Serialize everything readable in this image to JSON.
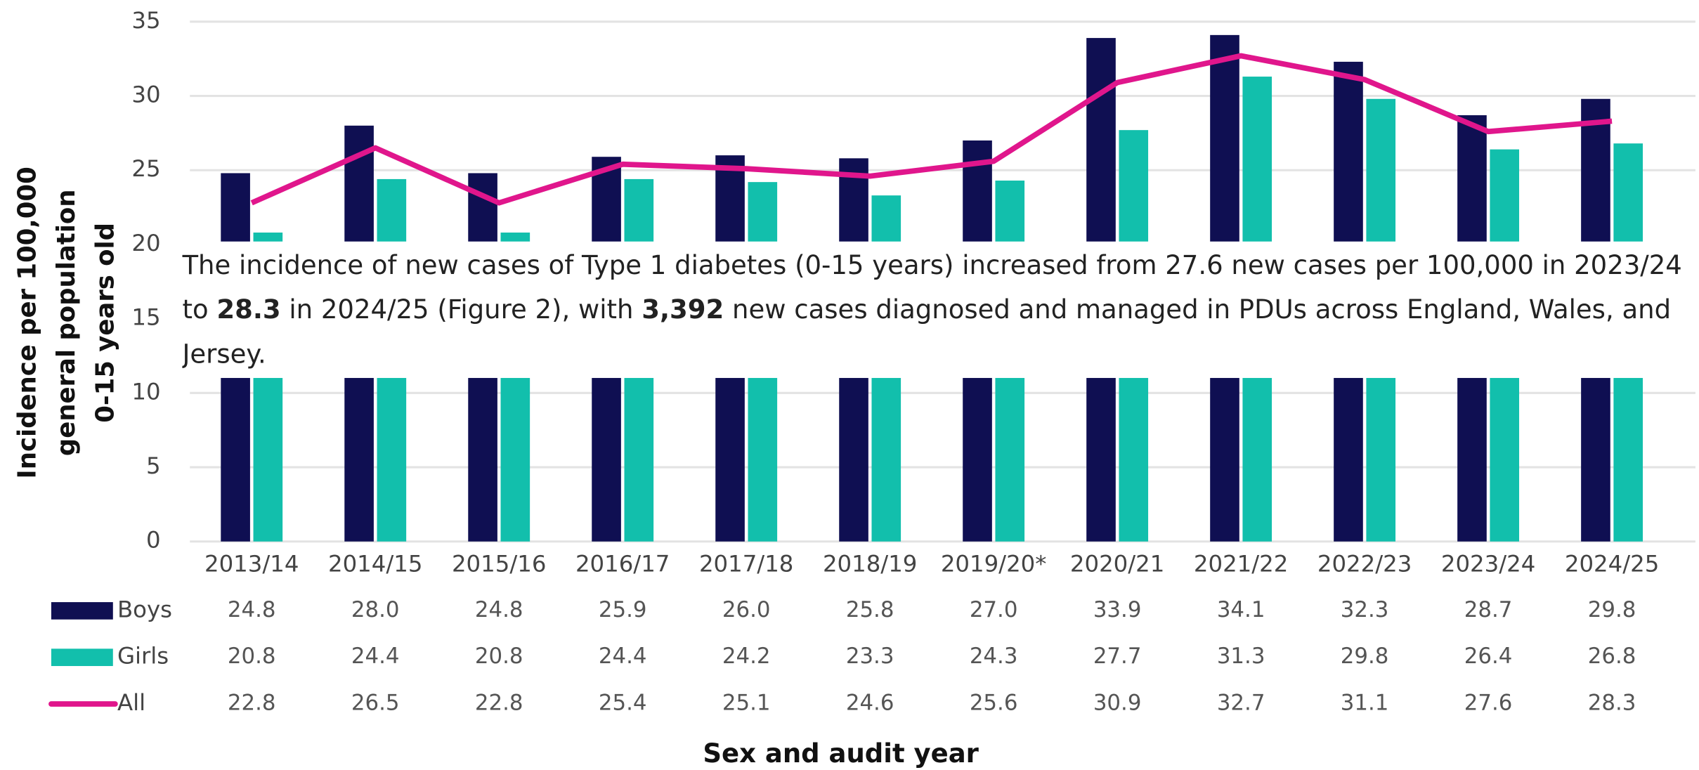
{
  "chart_data": {
    "type": "bar",
    "categories": [
      "2013/14",
      "2014/15",
      "2015/16",
      "2016/17",
      "2017/18",
      "2018/19",
      "2019/20*",
      "2020/21",
      "2021/22",
      "2022/23",
      "2023/24",
      "2024/25"
    ],
    "series": [
      {
        "name": "Boys",
        "color": "#0f0f52",
        "type": "bar",
        "values": [
          24.8,
          28.0,
          24.8,
          25.9,
          26.0,
          25.8,
          27.0,
          33.9,
          34.1,
          32.3,
          28.7,
          29.8
        ],
        "value_labels": [
          "24.8",
          "28.0",
          "24.8",
          "25.9",
          "26.0",
          "25.8",
          "27.0",
          "33.9",
          "34.1",
          "32.3",
          "28.7",
          "29.8"
        ]
      },
      {
        "name": "Girls",
        "color": "#12bfac",
        "type": "bar",
        "values": [
          20.8,
          24.4,
          20.8,
          24.4,
          24.2,
          23.3,
          24.3,
          27.7,
          31.3,
          29.8,
          26.4,
          26.8
        ],
        "value_labels": [
          "20.8",
          "24.4",
          "20.8",
          "24.4",
          "24.2",
          "23.3",
          "24.3",
          "27.7",
          "31.3",
          "29.8",
          "26.4",
          "26.8"
        ]
      },
      {
        "name": "All",
        "color": "#e0168c",
        "type": "line",
        "values": [
          22.8,
          26.5,
          22.8,
          25.4,
          25.1,
          24.6,
          25.6,
          30.9,
          32.7,
          31.1,
          27.6,
          28.3
        ],
        "value_labels": [
          "22.8",
          "26.5",
          "22.8",
          "25.4",
          "25.1",
          "24.6",
          "25.6",
          "30.9",
          "32.7",
          "31.1",
          "27.6",
          "28.3"
        ]
      }
    ],
    "ylim": [
      0,
      35
    ],
    "yticks": [
      0,
      5,
      10,
      15,
      20,
      25,
      30,
      35
    ],
    "grid": true,
    "ylabel": [
      "Incidence per 100,000",
      "general population",
      "0-15 years old"
    ],
    "xlabel": "Sex and audit year",
    "annotation": [
      "The incidence of new cases of Type 1 diabetes (0-15 years) increased from 27.6 new cases per 100,000 in 2023/24 to ",
      "28.3",
      " in 2024/25 (Figure 2), with ",
      "3,392",
      " new cases diagnosed and managed in PDUs across England, Wales, and Jersey."
    ]
  }
}
